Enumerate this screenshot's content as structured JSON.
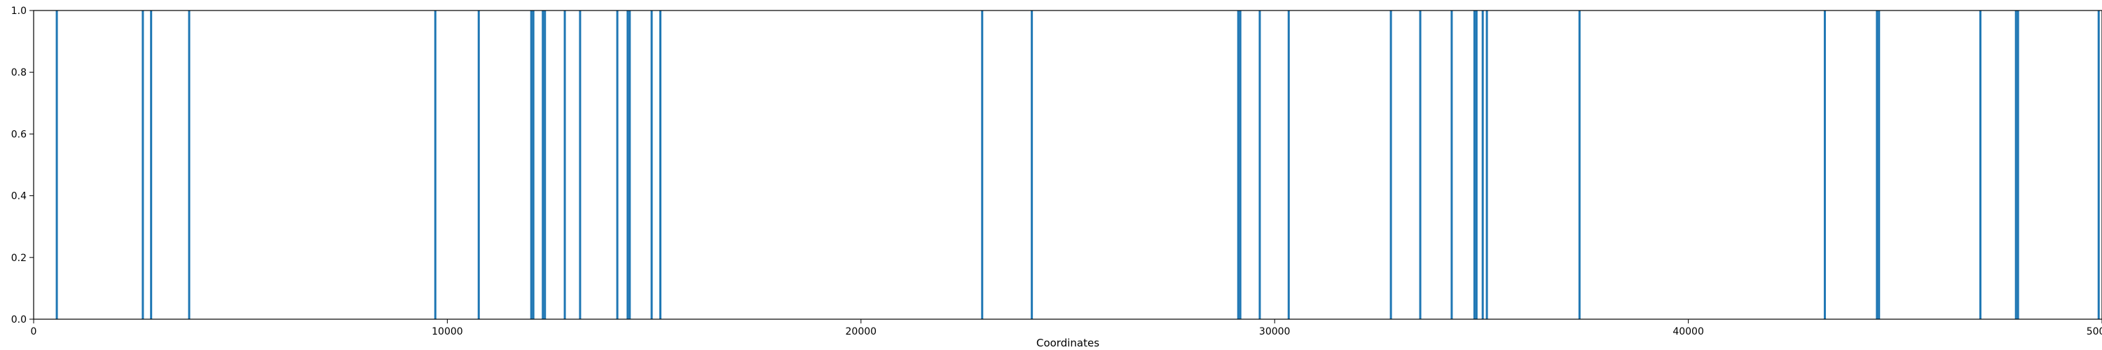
{
  "chart_data": {
    "type": "bar",
    "title": "",
    "xlabel": "Coordinates",
    "ylabel": "",
    "xlim": [
      0,
      50000
    ],
    "ylim": [
      0.0,
      1.0
    ],
    "grid": false,
    "x_ticks": [
      0,
      10000,
      20000,
      30000,
      40000,
      50000
    ],
    "y_ticks": [
      0.0,
      0.2,
      0.4,
      0.6,
      0.8,
      1.0
    ],
    "x_tick_labels": [
      "0",
      "10000",
      "20000",
      "30000",
      "40000",
      "50000"
    ],
    "y_tick_labels": [
      "0.0",
      "0.2",
      "0.4",
      "0.6",
      "0.8",
      "1.0"
    ],
    "color": "#1f77b4",
    "x": [
      560,
      2640,
      2840,
      3760,
      9710,
      10760,
      12030,
      12080,
      12310,
      12360,
      12840,
      13210,
      14110,
      14360,
      14410,
      14940,
      15150,
      22930,
      24130,
      29120,
      29170,
      29640,
      30340,
      32810,
      33520,
      34280,
      34830,
      34880,
      35030,
      35130,
      37370,
      43300,
      44560,
      44610,
      47060,
      47920,
      47970,
      49920
    ],
    "values": [
      1,
      1,
      1,
      1,
      1,
      1,
      1,
      1,
      1,
      1,
      1,
      1,
      1,
      1,
      1,
      1,
      1,
      1,
      1,
      1,
      1,
      1,
      1,
      1,
      1,
      1,
      1,
      1,
      1,
      1,
      1,
      1,
      1,
      1,
      1,
      1,
      1,
      1
    ]
  }
}
